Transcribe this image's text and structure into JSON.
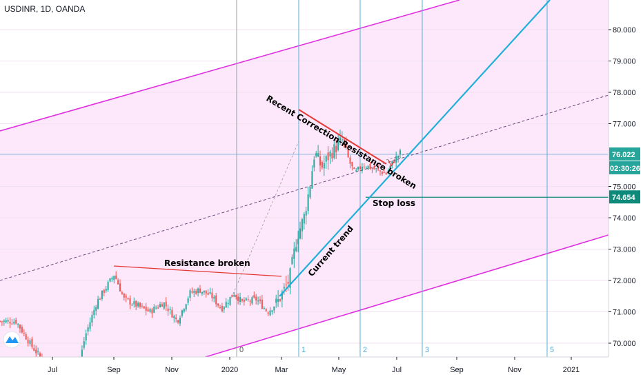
{
  "header": {
    "title": "USDINR, 1D, OANDA"
  },
  "colors": {
    "channel": "#e030e0",
    "channel_fill": "#fde7fb",
    "trend": "#1fb0d8",
    "vline": "#5aaed8",
    "resistance": "#e53935",
    "candle_up": "#26a69a",
    "candle_down": "#ef5350",
    "price_tag": "#26a69a",
    "stop_tag": "#0e8a7a"
  },
  "chart_data": {
    "type": "candlestick",
    "y_ticks": [
      "80.000",
      "79.000",
      "78.000",
      "77.000",
      "75.000",
      "74.000",
      "73.000",
      "72.000",
      "71.000",
      "70.000"
    ],
    "y_tick_values": [
      80,
      79,
      78,
      77,
      75,
      74,
      73,
      72,
      71,
      70
    ],
    "x_ticks": [
      "Jul",
      "Sep",
      "Nov",
      "2020",
      "Mar",
      "May",
      "Jul",
      "Sep",
      "Nov",
      "2021"
    ],
    "ylim": [
      69.6,
      81.1
    ],
    "price_tags": {
      "last": "76.022",
      "countdown": "02:30:26",
      "stop": "74.654"
    },
    "last_price": 76.022,
    "stop_price": 74.654,
    "vertical_markers": [
      "0",
      "1",
      "2",
      "3",
      "5"
    ],
    "annotations": {
      "resistance_broken": "Resistance broken",
      "recent_correction": "Recent Correction-Resistance broken",
      "current_trend": "Current trend",
      "stop_loss": "Stop loss"
    },
    "price_path": [
      [
        "2019-05-25",
        70.7
      ],
      [
        "2019-06-10",
        69.9
      ],
      [
        "2019-07-05",
        68.9
      ],
      [
        "2019-07-25",
        68.8
      ],
      [
        "2019-08-03",
        70.2
      ],
      [
        "2019-08-15",
        71.3
      ],
      [
        "2019-08-25",
        71.8
      ],
      [
        "2019-09-02",
        72.2
      ],
      [
        "2019-09-12",
        71.4
      ],
      [
        "2019-09-25",
        71.2
      ],
      [
        "2019-10-08",
        71.0
      ],
      [
        "2019-10-22",
        71.3
      ],
      [
        "2019-11-05",
        70.7
      ],
      [
        "2019-11-18",
        71.6
      ],
      [
        "2019-11-28",
        71.7
      ],
      [
        "2019-12-10",
        71.5
      ],
      [
        "2019-12-20",
        71.1
      ],
      [
        "2020-01-02",
        71.6
      ],
      [
        "2020-01-10",
        71.3
      ],
      [
        "2020-01-25",
        71.4
      ],
      [
        "2020-02-05",
        71.0
      ],
      [
        "2020-02-15",
        71.3
      ],
      [
        "2020-02-27",
        72.0
      ],
      [
        "2020-03-06",
        73.4
      ],
      [
        "2020-03-13",
        74.0
      ],
      [
        "2020-03-19",
        75.0
      ],
      [
        "2020-03-24",
        76.1
      ],
      [
        "2020-03-31",
        75.6
      ],
      [
        "2020-04-08",
        76.0
      ],
      [
        "2020-04-16",
        76.3
      ],
      [
        "2020-04-22",
        76.5
      ],
      [
        "2020-04-28",
        75.8
      ],
      [
        "2020-05-04",
        75.4
      ],
      [
        "2020-05-12",
        75.7
      ],
      [
        "2020-05-20",
        75.6
      ],
      [
        "2020-05-28",
        75.5
      ],
      [
        "2020-06-05",
        75.4
      ],
      [
        "2020-06-12",
        75.8
      ],
      [
        "2020-06-20",
        76.1
      ]
    ]
  }
}
